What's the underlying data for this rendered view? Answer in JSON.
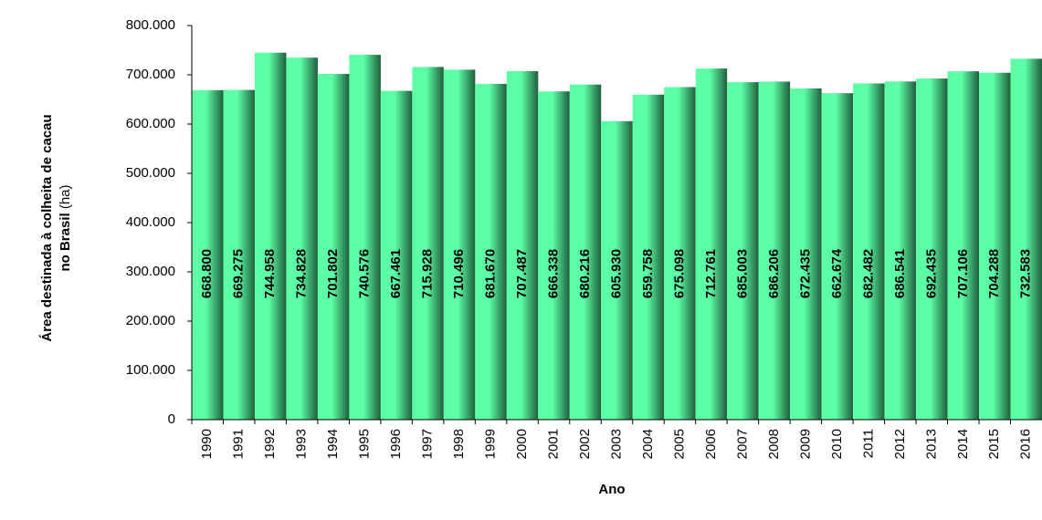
{
  "chart_data": {
    "type": "bar",
    "y_label": {
      "bold": [
        "Área destinada à colheita de cacau",
        "no Brasil"
      ],
      "unit": "(ha)"
    },
    "x_label": "Ano",
    "categories": [
      "1990",
      "1991",
      "1992",
      "1993",
      "1994",
      "1995",
      "1996",
      "1997",
      "1998",
      "1999",
      "2000",
      "2001",
      "2002",
      "2003",
      "2004",
      "2005",
      "2006",
      "2007",
      "2008",
      "2009",
      "2010",
      "2011",
      "2012",
      "2013",
      "2014",
      "2015",
      "2016"
    ],
    "values": [
      668800,
      669275,
      744958,
      734828,
      701802,
      740576,
      667461,
      715928,
      710496,
      681670,
      707487,
      666338,
      680216,
      605930,
      659758,
      675098,
      712761,
      685003,
      686206,
      672435,
      662674,
      682482,
      686541,
      692435,
      707106,
      704288,
      732583
    ],
    "value_labels": [
      "668.800",
      "669.275",
      "744.958",
      "734.828",
      "701.802",
      "740.576",
      "667.461",
      "715.928",
      "710.496",
      "681.670",
      "707.487",
      "666.338",
      "680.216",
      "605.930",
      "659.758",
      "675.098",
      "712.761",
      "685.003",
      "686.206",
      "672.435",
      "662.674",
      "682.482",
      "686.541",
      "692.435",
      "707.106",
      "704.288",
      "732.583"
    ],
    "color": "#5cffa6",
    "ylim": [
      0,
      800000
    ],
    "yticks": [
      0,
      {
        "value": 100000,
        "label": "100.000"
      },
      {
        "value": 200000,
        "label": "200.000"
      },
      {
        "value": 300000,
        "label": "300.000"
      },
      {
        "value": 400000,
        "label": "400.000"
      },
      {
        "value": 500000,
        "label": "500.000"
      },
      {
        "value": 600000,
        "label": "600.000"
      },
      {
        "value": 700000,
        "label": "700.000"
      },
      {
        "value": 800000,
        "label": "800.000"
      }
    ],
    "grid": false
  }
}
